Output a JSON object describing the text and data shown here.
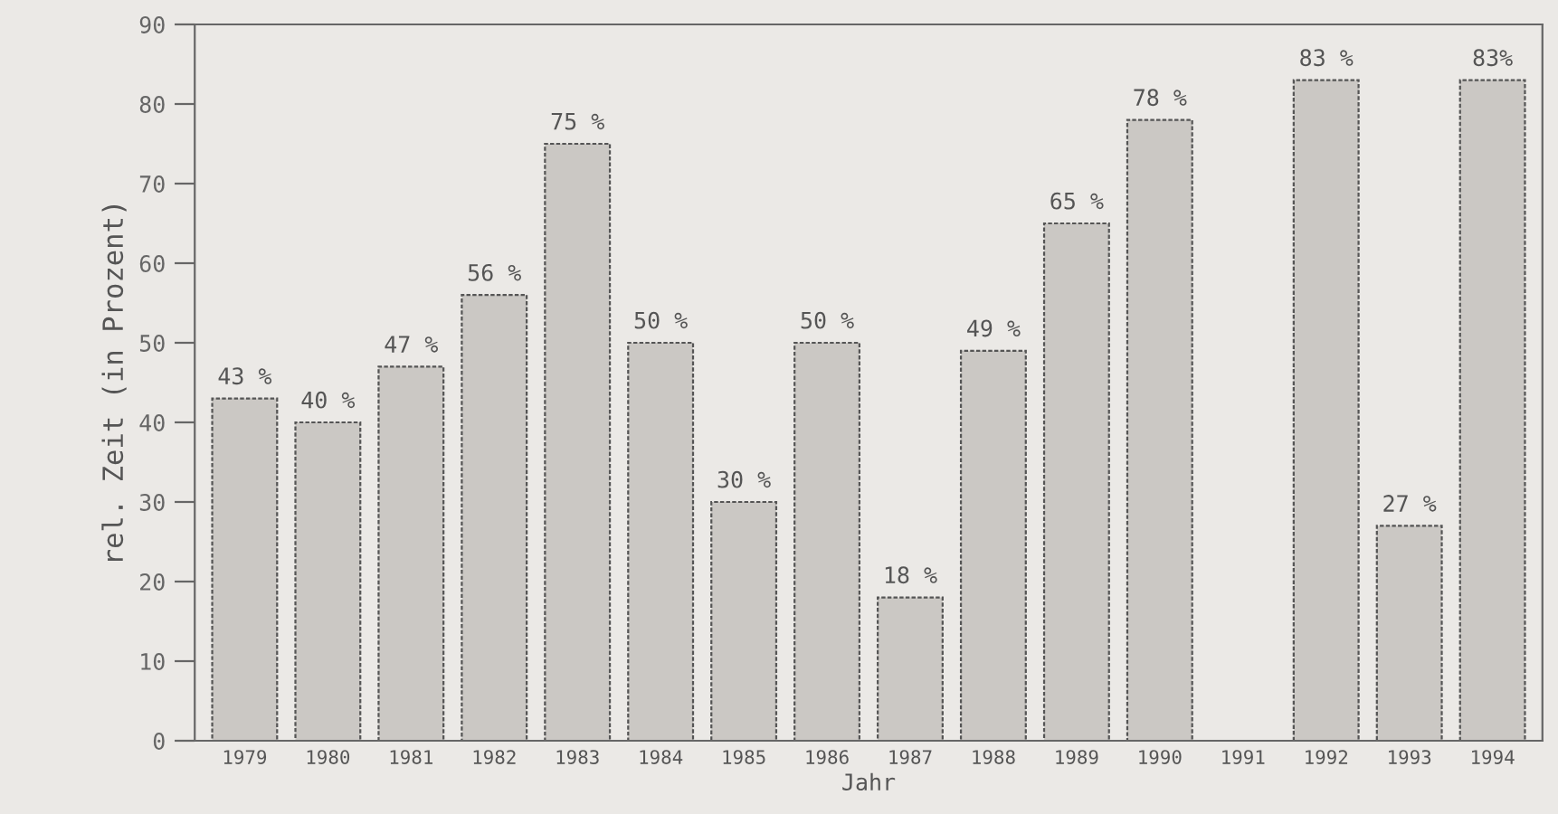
{
  "chart_data": {
    "type": "bar",
    "xlabel": "Jahr",
    "ylabel": "rel. Zeit (in Prozent)",
    "categories": [
      "1979",
      "1980",
      "1981",
      "1982",
      "1983",
      "1984",
      "1985",
      "1986",
      "1987",
      "1988",
      "1989",
      "1990",
      "1991",
      "1992",
      "1993",
      "1994"
    ],
    "values": [
      43,
      40,
      47,
      56,
      75,
      50,
      30,
      50,
      18,
      49,
      65,
      78,
      null,
      83,
      27,
      83
    ],
    "value_labels": [
      "43 %",
      "40 %",
      "47 %",
      "56 %",
      "75 %",
      "50 %",
      "30 %",
      "50 %",
      "18 %",
      "49 %",
      "65 %",
      "78 %",
      null,
      "83 %",
      "27 %",
      "83%"
    ],
    "color": "#cbc8c4",
    "ylim": [
      0,
      90
    ],
    "yticks": [
      0,
      10,
      20,
      30,
      40,
      50,
      60,
      70,
      80,
      90
    ],
    "grid": false,
    "legend": false
  }
}
